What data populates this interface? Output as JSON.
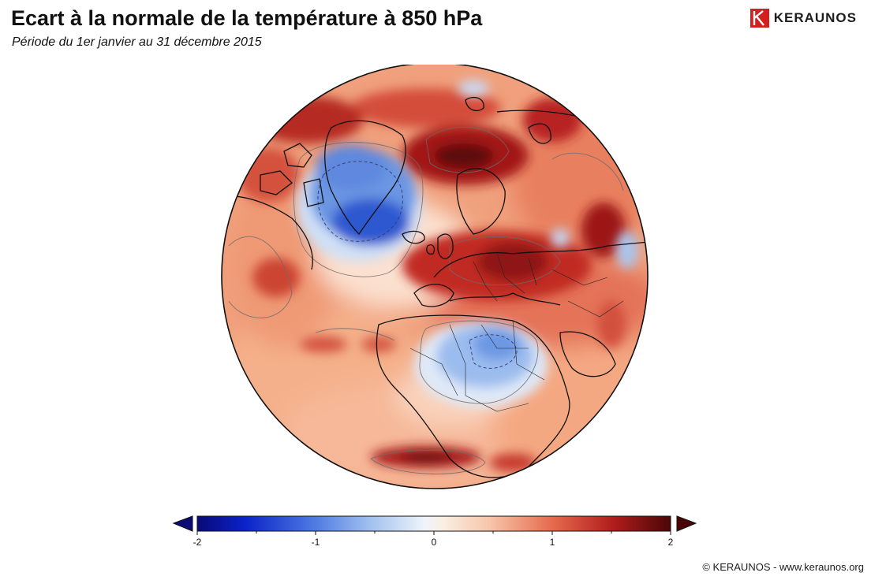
{
  "header": {
    "title": "Ecart à la normale de la température à 850 hPa",
    "subtitle": "Période du 1er janvier au 31 décembre 2015"
  },
  "brand": {
    "name": "KERAUNOS",
    "color": "#d3201f",
    "icon": "keraunos-logo-icon"
  },
  "map": {
    "projection": "orthographic globe",
    "anomalies": [
      {
        "region": "Greenland",
        "sign": "negative",
        "strength": -1.4
      },
      {
        "region": "North Atlantic south of Greenland",
        "sign": "negative",
        "strength": -1.6
      },
      {
        "region": "Sahara / Libya",
        "sign": "negative",
        "strength": -0.8
      },
      {
        "region": "Western Siberia",
        "sign": "positive",
        "strength": 2.0
      },
      {
        "region": "Arctic Ocean / Barents",
        "sign": "positive",
        "strength": 1.8
      },
      {
        "region": "Northeast Canada",
        "sign": "positive",
        "strength": 1.7
      },
      {
        "region": "Europe",
        "sign": "positive",
        "strength": 1.4
      },
      {
        "region": "Central Asia",
        "sign": "positive",
        "strength": 1.9
      },
      {
        "region": "South Atlantic",
        "sign": "positive",
        "strength": 2.0
      }
    ]
  },
  "colorbar": {
    "ticks": [
      "-2",
      "-1",
      "0",
      "1",
      "2"
    ],
    "min": -2,
    "max": 2,
    "low_color": "#0a0a78",
    "high_color": "#4a0606",
    "extend": "both"
  },
  "footer": {
    "copyright": "© KERAUNOS - www.keraunos.org"
  }
}
